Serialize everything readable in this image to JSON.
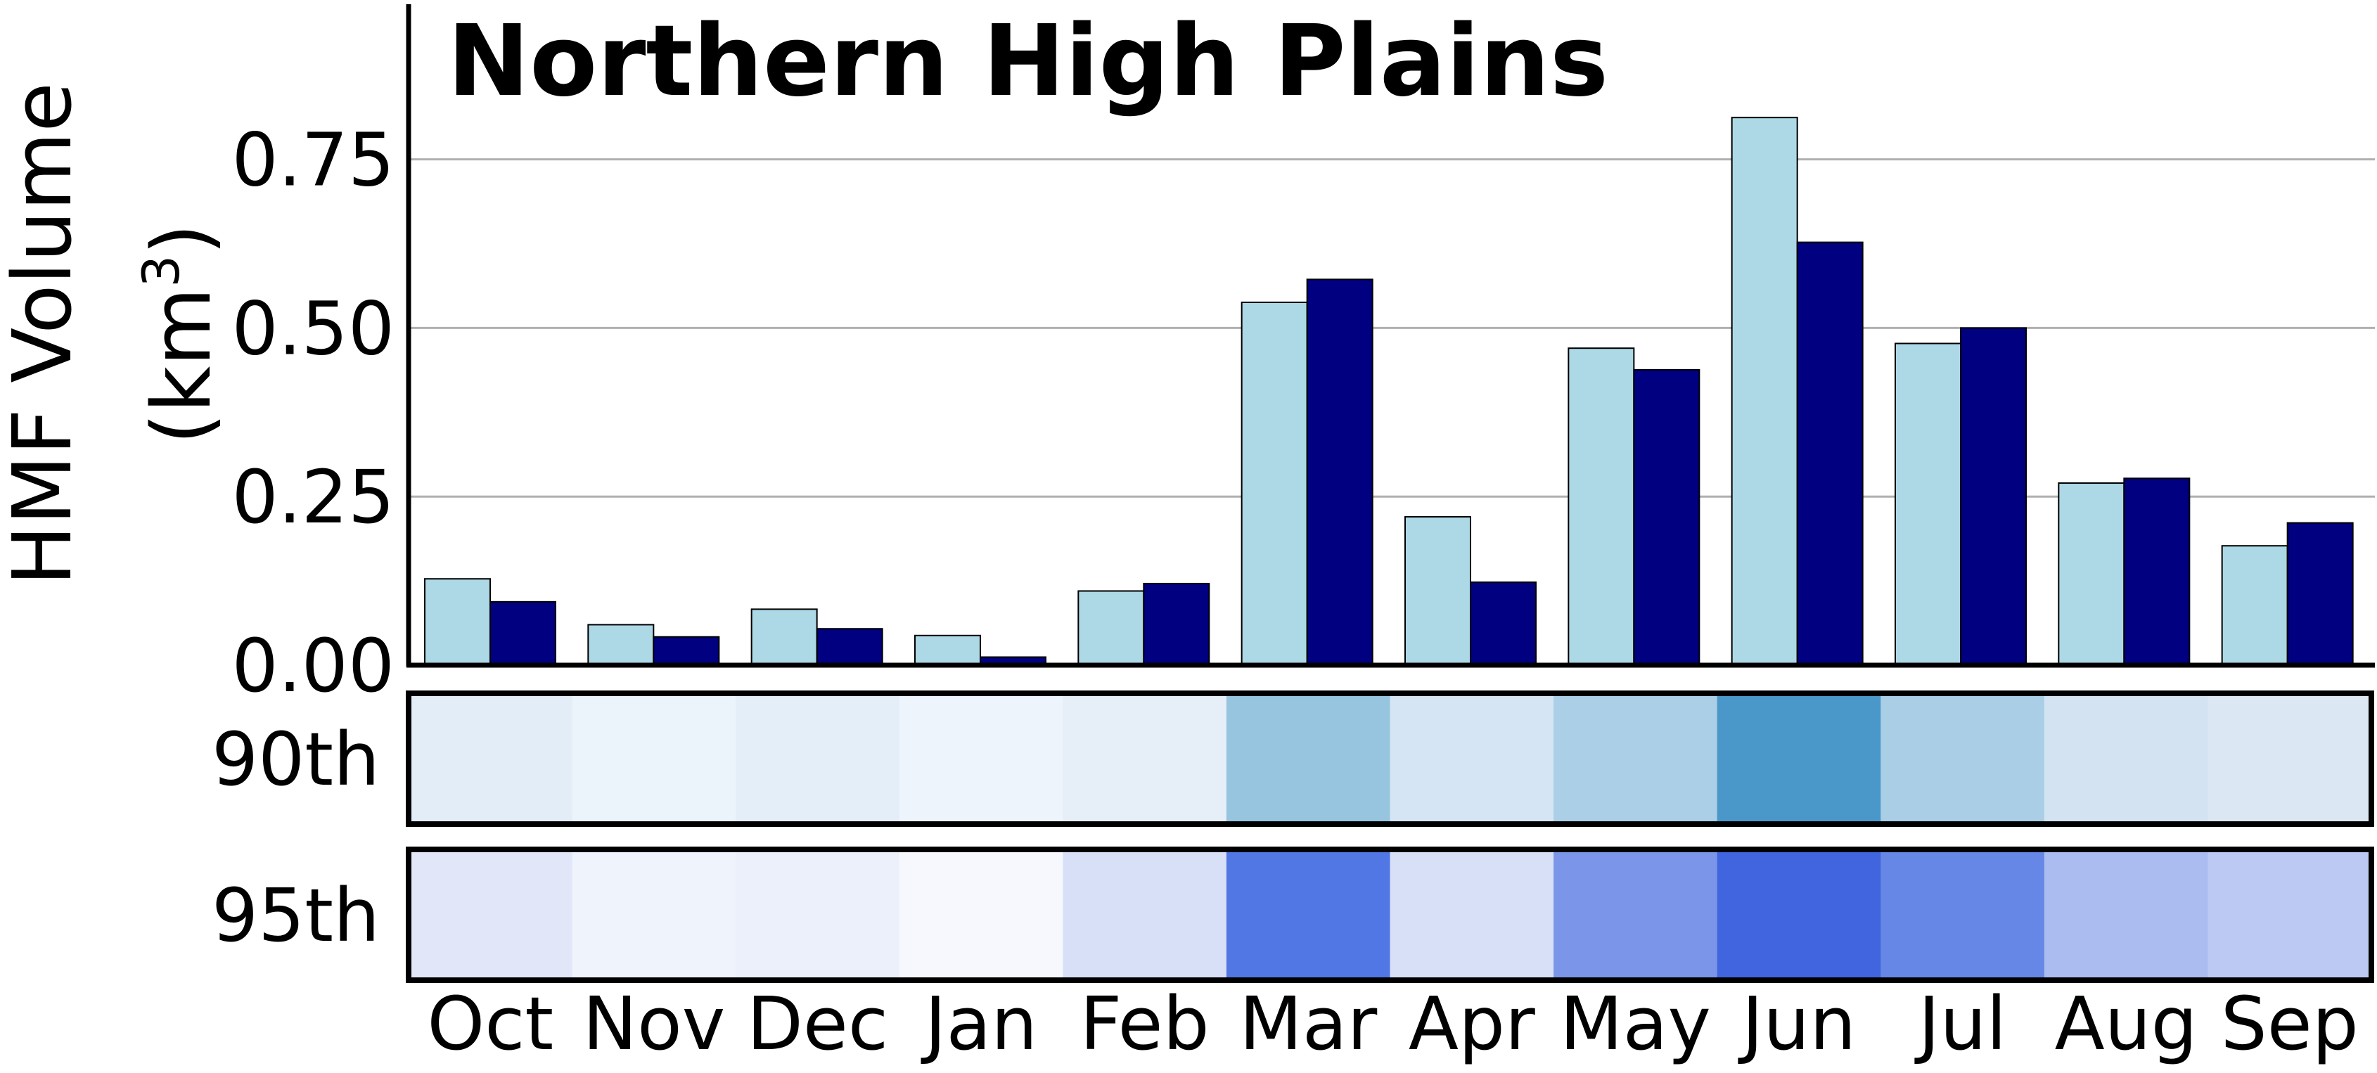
{
  "chart_data": {
    "type": "bar",
    "title": "Northern High Plains",
    "ylabel_line1": "HMF Volume",
    "ylabel_line2_prefix": "(km",
    "ylabel_line2_sup": "3",
    "ylabel_line2_suffix": ")",
    "categories": [
      "Oct",
      "Nov",
      "Dec",
      "Jan",
      "Feb",
      "Mar",
      "Apr",
      "May",
      "Jun",
      "Jul",
      "Aug",
      "Sep"
    ],
    "series": [
      {
        "color": "#add8e6",
        "values": [
          0.128,
          0.06,
          0.083,
          0.044,
          0.11,
          0.538,
          0.22,
          0.47,
          0.812,
          0.477,
          0.27,
          0.177
        ]
      },
      {
        "color": "#000080",
        "values": [
          0.094,
          0.042,
          0.054,
          0.012,
          0.121,
          0.572,
          0.123,
          0.438,
          0.627,
          0.5,
          0.277,
          0.211
        ]
      }
    ],
    "ylim": [
      0,
      0.98
    ],
    "yticks": [
      "0.00",
      "0.25",
      "0.50",
      "0.75"
    ],
    "ytick_values": [
      0,
      0.25,
      0.5,
      0.75
    ],
    "grid": "horizontal",
    "heatmap_rows": [
      {
        "label": "90th",
        "colors": [
          "#e3edf7",
          "#ebf3fb",
          "#e4eef8",
          "#eef4fc",
          "#e6eff8",
          "#97c5e0",
          "#d5e5f4",
          "#abcfe6",
          "#4a98c9",
          "#a9cee5",
          "#d3e3f2",
          "#dbe8f4"
        ]
      },
      {
        "label": "95th",
        "colors": [
          "#e1e6f9",
          "#eff3fc",
          "#ecf0fb",
          "#f6f8fd",
          "#d8e0f8",
          "#5077e3",
          "#d8e0f8",
          "#7b95e8",
          "#4065df",
          "#6787e6",
          "#abbcf0",
          "#bccaf3"
        ]
      }
    ]
  }
}
